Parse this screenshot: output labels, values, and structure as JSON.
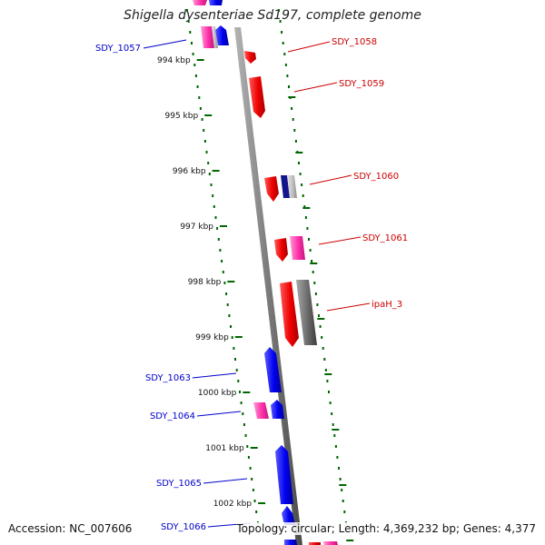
{
  "title": "Shigella dysenteriae Sd197, complete genome",
  "footer": {
    "accession": "Accession: NC_007606",
    "info": "Topology: circular; Length: 4,369,232 bp; Genes: 4,377"
  },
  "colors": {
    "backbone": "#808080",
    "forward_gene": "#ee1111",
    "reverse_gene": "#1111ee",
    "pink_gene": "#ff2fa8",
    "gray_gene": "#6b6b6b",
    "light_gray_gene": "#c0c0c0",
    "tick": "#006600",
    "label_red": "#cc0000",
    "label_blue": "#0000cc"
  },
  "scale_labels": [
    "994 kbp",
    "995 kbp",
    "996 kbp",
    "997 kbp",
    "998 kbp",
    "999 kbp",
    "1000 kbp",
    "1001 kbp",
    "1002 kbp"
  ],
  "gene_labels": {
    "right": [
      "SDY_1058",
      "SDY_1059",
      "SDY_1060",
      "SDY_1061",
      "ipaH_3"
    ],
    "left": [
      "SDY_1057",
      "SDY_1063",
      "SDY_1064",
      "SDY_1065",
      "SDY_1066"
    ]
  }
}
